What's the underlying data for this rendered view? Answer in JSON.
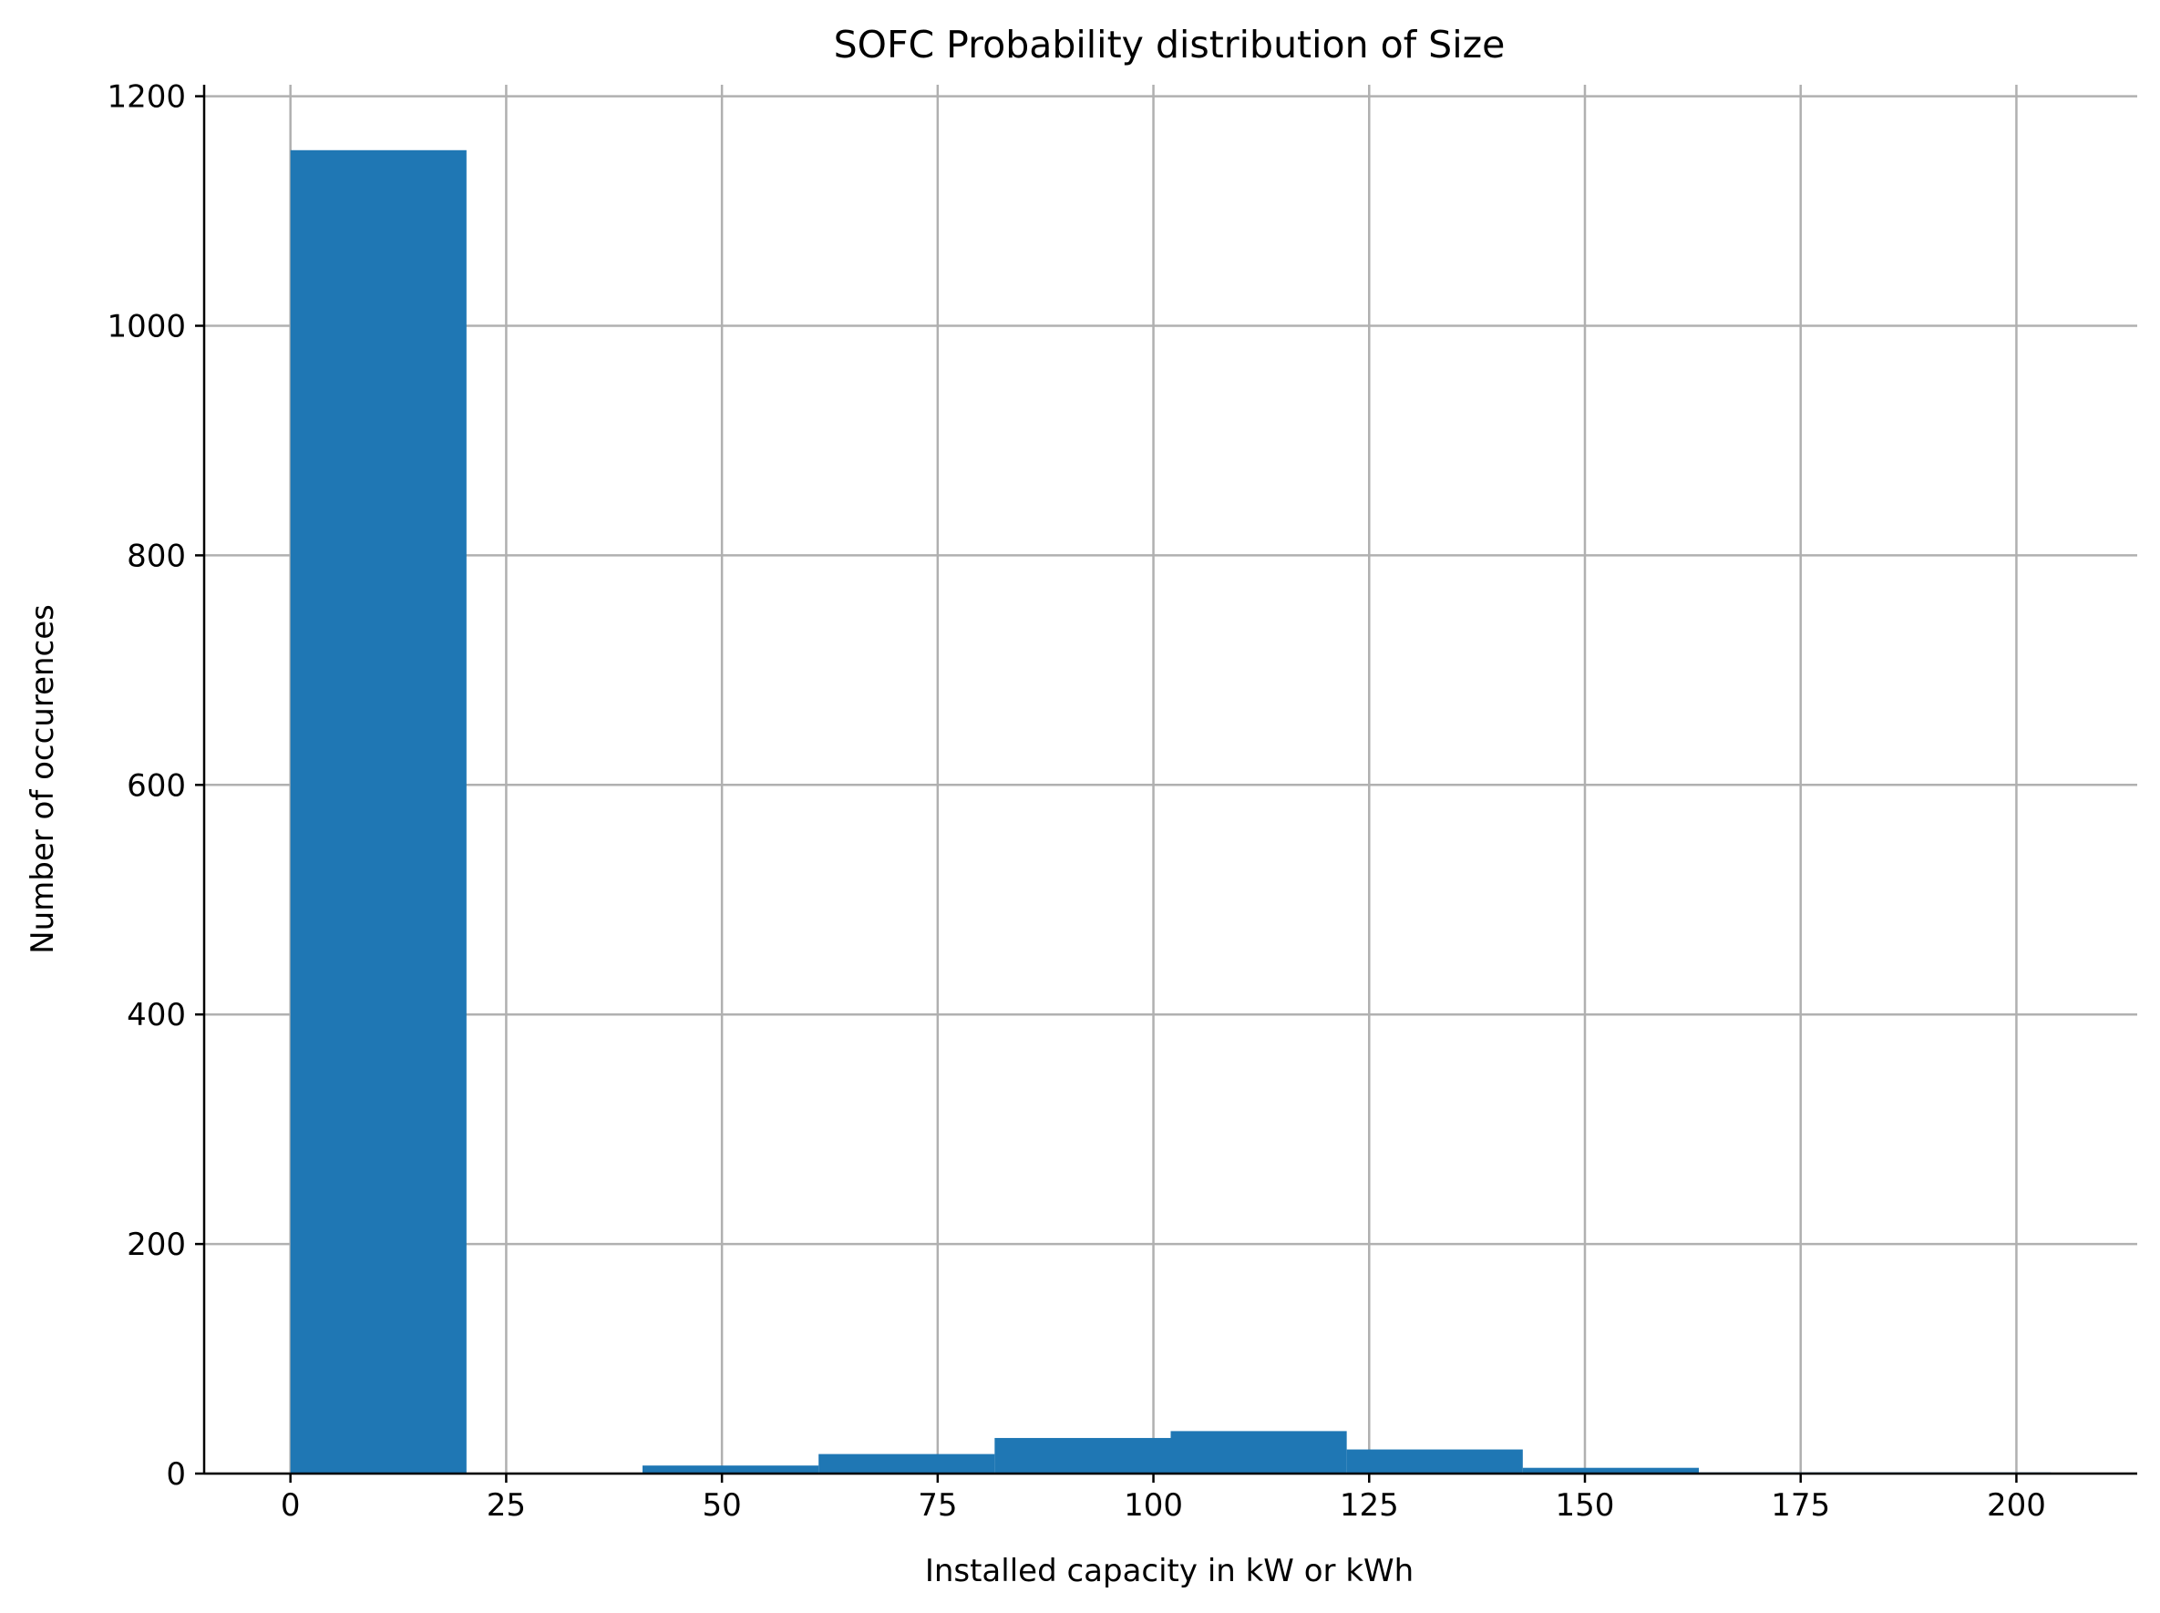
{
  "chart_data": {
    "type": "bar",
    "title": "SOFC Probability distribution of Size",
    "xlabel": "Installed capacity in kW or kWh",
    "ylabel": "Number of occurences",
    "xlim": [
      -10,
      214
    ],
    "ylim": [
      0,
      1210
    ],
    "xticks": [
      0,
      25,
      50,
      75,
      100,
      125,
      150,
      175,
      200
    ],
    "yticks": [
      0,
      200,
      400,
      600,
      800,
      1000,
      1200
    ],
    "grid": true,
    "color": "#1f77b4",
    "bins": [
      {
        "x0": 0.0,
        "x1": 20.4,
        "value": 1153
      },
      {
        "x0": 20.4,
        "x1": 40.8,
        "value": 0
      },
      {
        "x0": 40.8,
        "x1": 61.2,
        "value": 7
      },
      {
        "x0": 61.2,
        "x1": 81.6,
        "value": 17
      },
      {
        "x0": 81.6,
        "x1": 102.0,
        "value": 31
      },
      {
        "x0": 102.0,
        "x1": 122.4,
        "value": 37
      },
      {
        "x0": 122.4,
        "x1": 142.8,
        "value": 21
      },
      {
        "x0": 142.8,
        "x1": 163.2,
        "value": 5
      },
      {
        "x0": 163.2,
        "x1": 183.6,
        "value": 1
      },
      {
        "x0": 183.6,
        "x1": 204.0,
        "value": 1
      }
    ]
  }
}
